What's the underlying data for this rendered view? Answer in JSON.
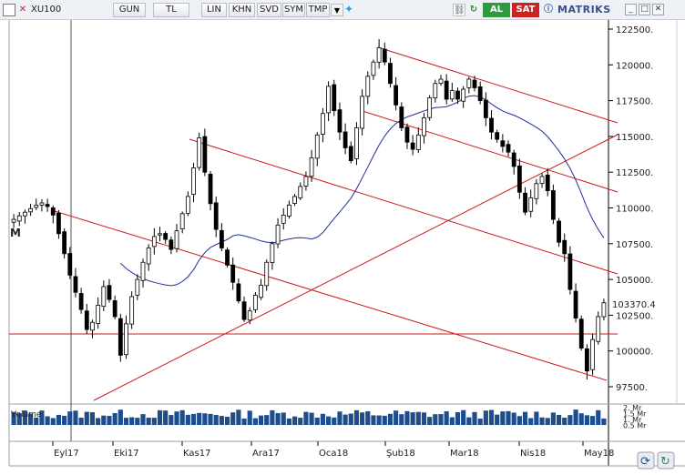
{
  "toolbar": {
    "symbol": "XU100",
    "buttons": [
      "GUN",
      "TL",
      "LIN",
      "KHN",
      "SVD",
      "SYM",
      "TMP"
    ],
    "buy_label": "AL",
    "sell_label": "SAT",
    "brand": "MATRIKS",
    "icons": [
      "square-icon",
      "close-x-icon",
      "dropdown-arrow-icon",
      "twitter-bird-icon",
      "link-icon",
      "refresh-icon",
      "info-icon",
      "minimize-icon",
      "maximize-icon",
      "close-icon"
    ],
    "colors": {
      "buy": "#2e9b3f",
      "sell": "#cc2222",
      "twitter": "#1da1f2"
    }
  },
  "panel_label": "M",
  "current_price_label": "103370.4",
  "volume_label": "Volume",
  "chart_data": {
    "type": "candlestick",
    "symbol": "XU100",
    "y_ticks": [
      "122500.",
      "120000.",
      "117500.",
      "115000.",
      "112500.",
      "110000.",
      "107500.",
      "105000.",
      "102500.",
      "100000.",
      "97500."
    ],
    "x_ticks": [
      "Eyl17",
      "Eki17",
      "Kas17",
      "Ara17",
      "Oca18",
      "Şub18",
      "Mar18",
      "Nis18",
      "May18"
    ],
    "volume_ticks": [
      "2. Mr",
      "1.5 Mr",
      "1. Mr",
      "0.5 Mr"
    ],
    "ylim": [
      96500,
      123500
    ],
    "series": [
      {
        "name": "",
        "close": [
          109200,
          109450,
          109700,
          109950,
          110200,
          110350,
          110100,
          109500,
          108200,
          106800,
          105300,
          104100,
          102900,
          101500,
          102000,
          103200,
          104500,
          103600,
          102400,
          99700,
          101900,
          103800,
          105000,
          106200,
          107200,
          108000,
          108200,
          107800,
          107100,
          108400,
          109600,
          110800,
          112800,
          114900,
          112500,
          110300,
          108500,
          107200,
          106000,
          104800,
          103500,
          102200,
          102800,
          103900,
          104600,
          106200,
          107500,
          108800,
          109500,
          110200,
          110800,
          111500,
          112200,
          113500,
          115100,
          116600,
          118500,
          116800,
          115300,
          114200,
          113300,
          115600,
          117800,
          119200,
          120200,
          121200,
          120200,
          118700,
          117200,
          115600,
          114600,
          114100,
          115100,
          116300,
          117700,
          118700,
          119000,
          117600,
          118200,
          117600,
          118300,
          119000,
          118400,
          117500,
          116300,
          115300,
          114800,
          114300,
          113900,
          112900,
          111100,
          109700,
          110700,
          111700,
          112200,
          111200,
          109200,
          107600,
          106800,
          104300,
          102300,
          100200,
          98600,
          100800,
          102400,
          103370
        ]
      }
    ],
    "overlays": [
      "moving-average",
      "trend-lines",
      "horizontal-level"
    ],
    "colors": {
      "candle": "#000000",
      "moving_average": "#1e2f9a",
      "trend_lines": "#cc1a1a",
      "volume": "#1e4d8c"
    }
  }
}
